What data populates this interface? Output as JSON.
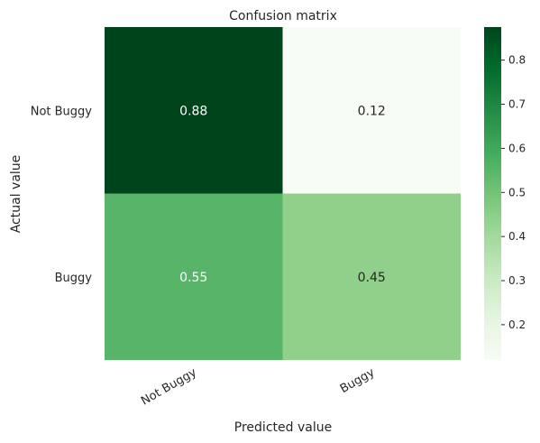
{
  "chart_data": {
    "type": "heatmap",
    "title": "Confusion matrix",
    "xlabel": "Predicted value",
    "ylabel": "Actual value",
    "x_categories": [
      "Not Buggy",
      "Buggy"
    ],
    "y_categories": [
      "Not Buggy",
      "Buggy"
    ],
    "values": [
      [
        0.88,
        0.12
      ],
      [
        0.55,
        0.45
      ]
    ],
    "annotations": [
      [
        "0.88",
        "0.12"
      ],
      [
        "0.55",
        "0.45"
      ]
    ],
    "colormap": "Greens",
    "colorbar": {
      "range": [
        0.12,
        0.875
      ],
      "ticks": [
        0.2,
        0.3,
        0.4,
        0.5,
        0.6,
        0.7,
        0.8
      ],
      "tick_labels": [
        "0.2",
        "0.3",
        "0.4",
        "0.5",
        "0.6",
        "0.7",
        "0.8"
      ]
    },
    "cell_colors": [
      [
        "#00441b",
        "#f7fcf5"
      ],
      [
        "#58b469",
        "#91d08a"
      ]
    ],
    "colorbar_gradient": [
      "#f7fcf5",
      "#e5f5e0",
      "#c7e9c0",
      "#a1d99b",
      "#74c476",
      "#41ab5d",
      "#238b45",
      "#006d2c",
      "#00441b"
    ],
    "annotation_colors": {
      "dark_background": "#ffffff",
      "light_background": "#262626"
    },
    "grid": false
  }
}
